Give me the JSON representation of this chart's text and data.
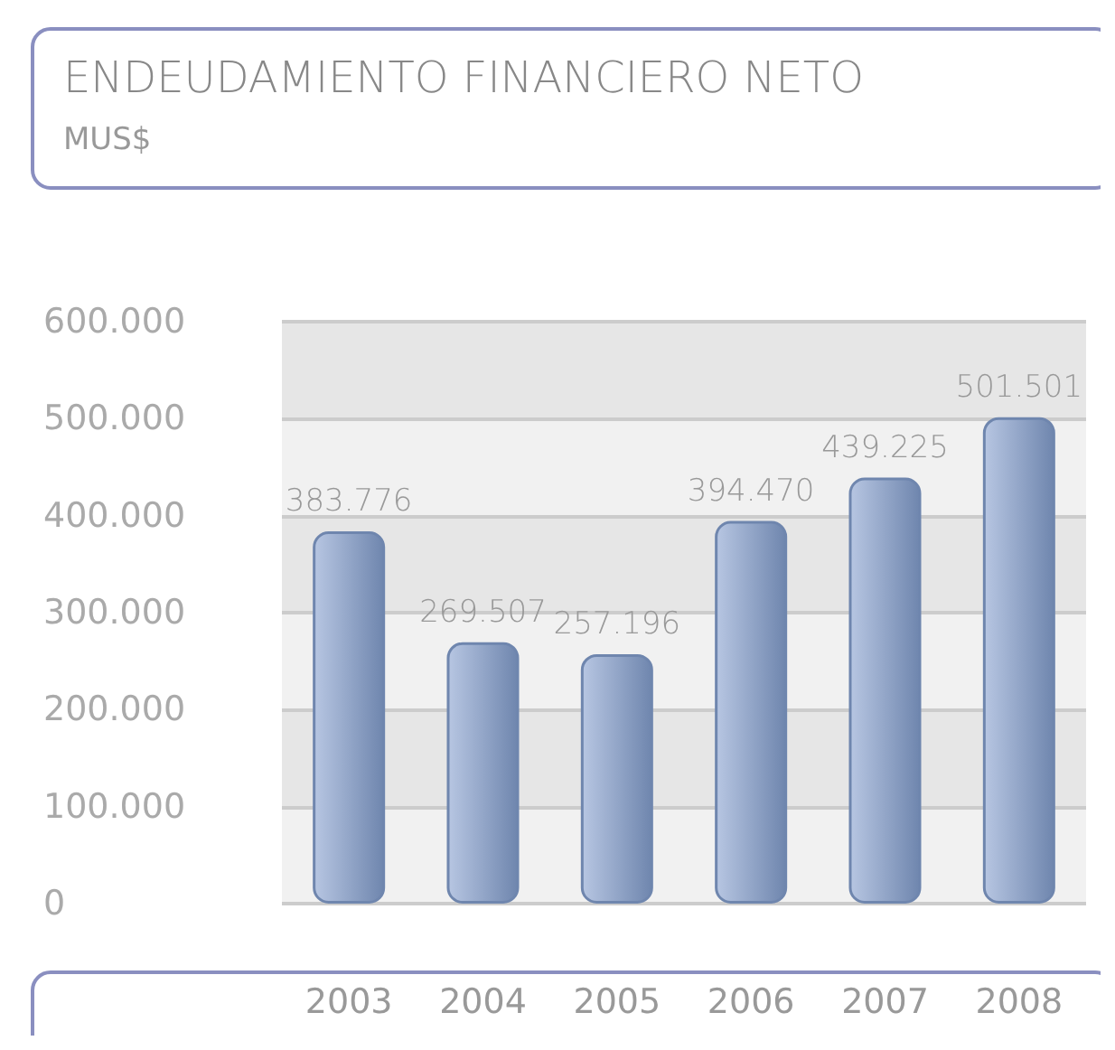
{
  "chart_data": {
    "type": "bar",
    "title": "ENDEUDAMIENTO FINANCIERO NETO",
    "subtitle": "MUS$",
    "categories": [
      "2003",
      "2004",
      "2005",
      "2006",
      "2007",
      "2008"
    ],
    "values": [
      383776,
      269507,
      257196,
      394470,
      439225,
      501501
    ],
    "value_labels": [
      "383.776",
      "269.507",
      "257.196",
      "394.470",
      "439.225",
      "501.501"
    ],
    "color": "#6f86ae",
    "ylim": [
      0,
      600000
    ],
    "yticks": [
      {
        "value": 0,
        "label": "0"
      },
      {
        "value": 100000,
        "label": "100.000"
      },
      {
        "value": 200000,
        "label": "200.000"
      },
      {
        "value": 300000,
        "label": "300.000"
      },
      {
        "value": 400000,
        "label": "400.000"
      },
      {
        "value": 500000,
        "label": "500.000"
      },
      {
        "value": 600000,
        "label": "600.000"
      }
    ],
    "grid": "y"
  }
}
